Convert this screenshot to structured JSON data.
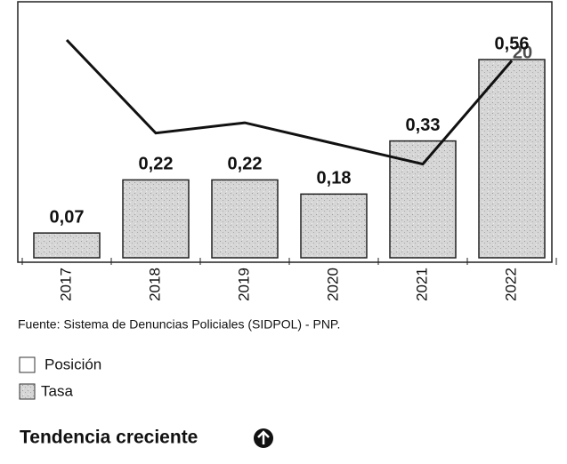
{
  "chart_data": {
    "type": "bar",
    "categories": [
      "2017",
      "2018",
      "2019",
      "2020",
      "2021",
      "2022"
    ],
    "series": [
      {
        "name": "Posición",
        "type": "line",
        "color": "#111111",
        "axis": "y2",
        "values": [
          22,
          13,
          14,
          12,
          10,
          20
        ],
        "value_labels": [
          null,
          null,
          null,
          null,
          null,
          "20"
        ]
      },
      {
        "name": "Tasa",
        "type": "bar",
        "color": "#cfcfcf",
        "values": [
          0.07,
          0.22,
          0.22,
          0.18,
          0.33,
          0.56
        ],
        "value_labels": [
          "0,07",
          "0,22",
          "0,22",
          "0,18",
          "0,33",
          "0,56"
        ]
      }
    ],
    "source": "Fuente: Sistema de Denuncias Policiales (SIDPOL) - PNP.",
    "footer": "Tendencia creciente"
  }
}
